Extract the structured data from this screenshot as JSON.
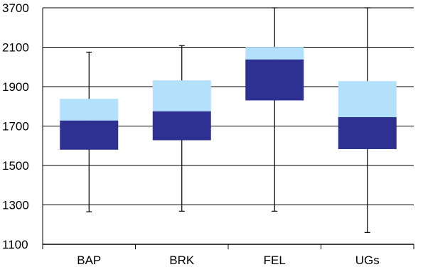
{
  "chart_data": {
    "type": "box",
    "title": "",
    "xlabel": "",
    "ylabel": "",
    "grid": true,
    "y_tick_labels": [
      "1100",
      "1300",
      "1500",
      "1700",
      "1900",
      "2100",
      "3700"
    ],
    "categories": [
      "BAP",
      "BRK",
      "FEL",
      "UGs"
    ],
    "boxes": [
      {
        "category": "BAP",
        "min": 1265,
        "q1": 1580,
        "median": 1728,
        "q3": 1838,
        "max": 2075
      },
      {
        "category": "BRK",
        "min": 1268,
        "q1": 1628,
        "median": 1775,
        "q3": 1932,
        "max": 2165
      },
      {
        "category": "FEL",
        "min": 1268,
        "q1": 1830,
        "median": 2038,
        "q3": 2110,
        "max": 3700
      },
      {
        "category": "UGs",
        "min": 1160,
        "q1": 1583,
        "median": 1745,
        "q3": 1928,
        "max": 3700
      }
    ],
    "colors": {
      "lower_box": "#2e3192",
      "upper_box": "#b3e1fb",
      "whisker": "#000000",
      "grid": "#000000",
      "axis": "#000000"
    }
  }
}
